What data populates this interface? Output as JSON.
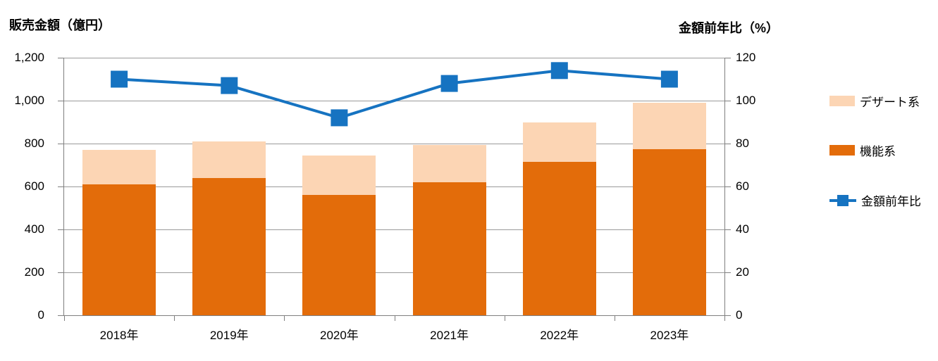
{
  "colors": {
    "orange": "#E36C0A",
    "peach": "#FCD5B4",
    "blue": "#1673C1",
    "gridline": "#9A9A9A",
    "axis": "#7F7F7F",
    "text": "#000000",
    "background": "#FFFFFF"
  },
  "chart_data": {
    "type": "combo: stacked-bar + line",
    "categories": [
      "2018年",
      "2019年",
      "2020年",
      "2021年",
      "2022年",
      "2023年"
    ],
    "series": [
      {
        "name": "機能系",
        "type": "bar",
        "stack_order": 0,
        "color_key": "orange",
        "values": [
          610,
          640,
          560,
          620,
          715,
          775
        ]
      },
      {
        "name": "デザート系",
        "type": "bar",
        "stack_order": 1,
        "color_key": "peach",
        "values": [
          160,
          170,
          185,
          175,
          185,
          215
        ]
      }
    ],
    "stack_totals": [
      770,
      810,
      745,
      795,
      900,
      990
    ],
    "line_series": {
      "name": "金額前年比",
      "type": "line",
      "axis": "right",
      "color_key": "blue",
      "values": [
        110,
        107,
        92,
        108,
        114,
        110
      ],
      "marker": "square"
    },
    "left_axis": {
      "title": "販売金額（億円）",
      "min": 0,
      "max": 1200,
      "step": 200,
      "tick_labels": [
        "0",
        "200",
        "400",
        "600",
        "800",
        "1,000",
        "1,200"
      ]
    },
    "right_axis": {
      "title": "金額前年比（%）",
      "min": 0,
      "max": 120,
      "step": 20,
      "tick_labels": [
        "0",
        "20",
        "40",
        "60",
        "80",
        "100",
        "120"
      ]
    },
    "grid": true,
    "legend_position": "right"
  }
}
